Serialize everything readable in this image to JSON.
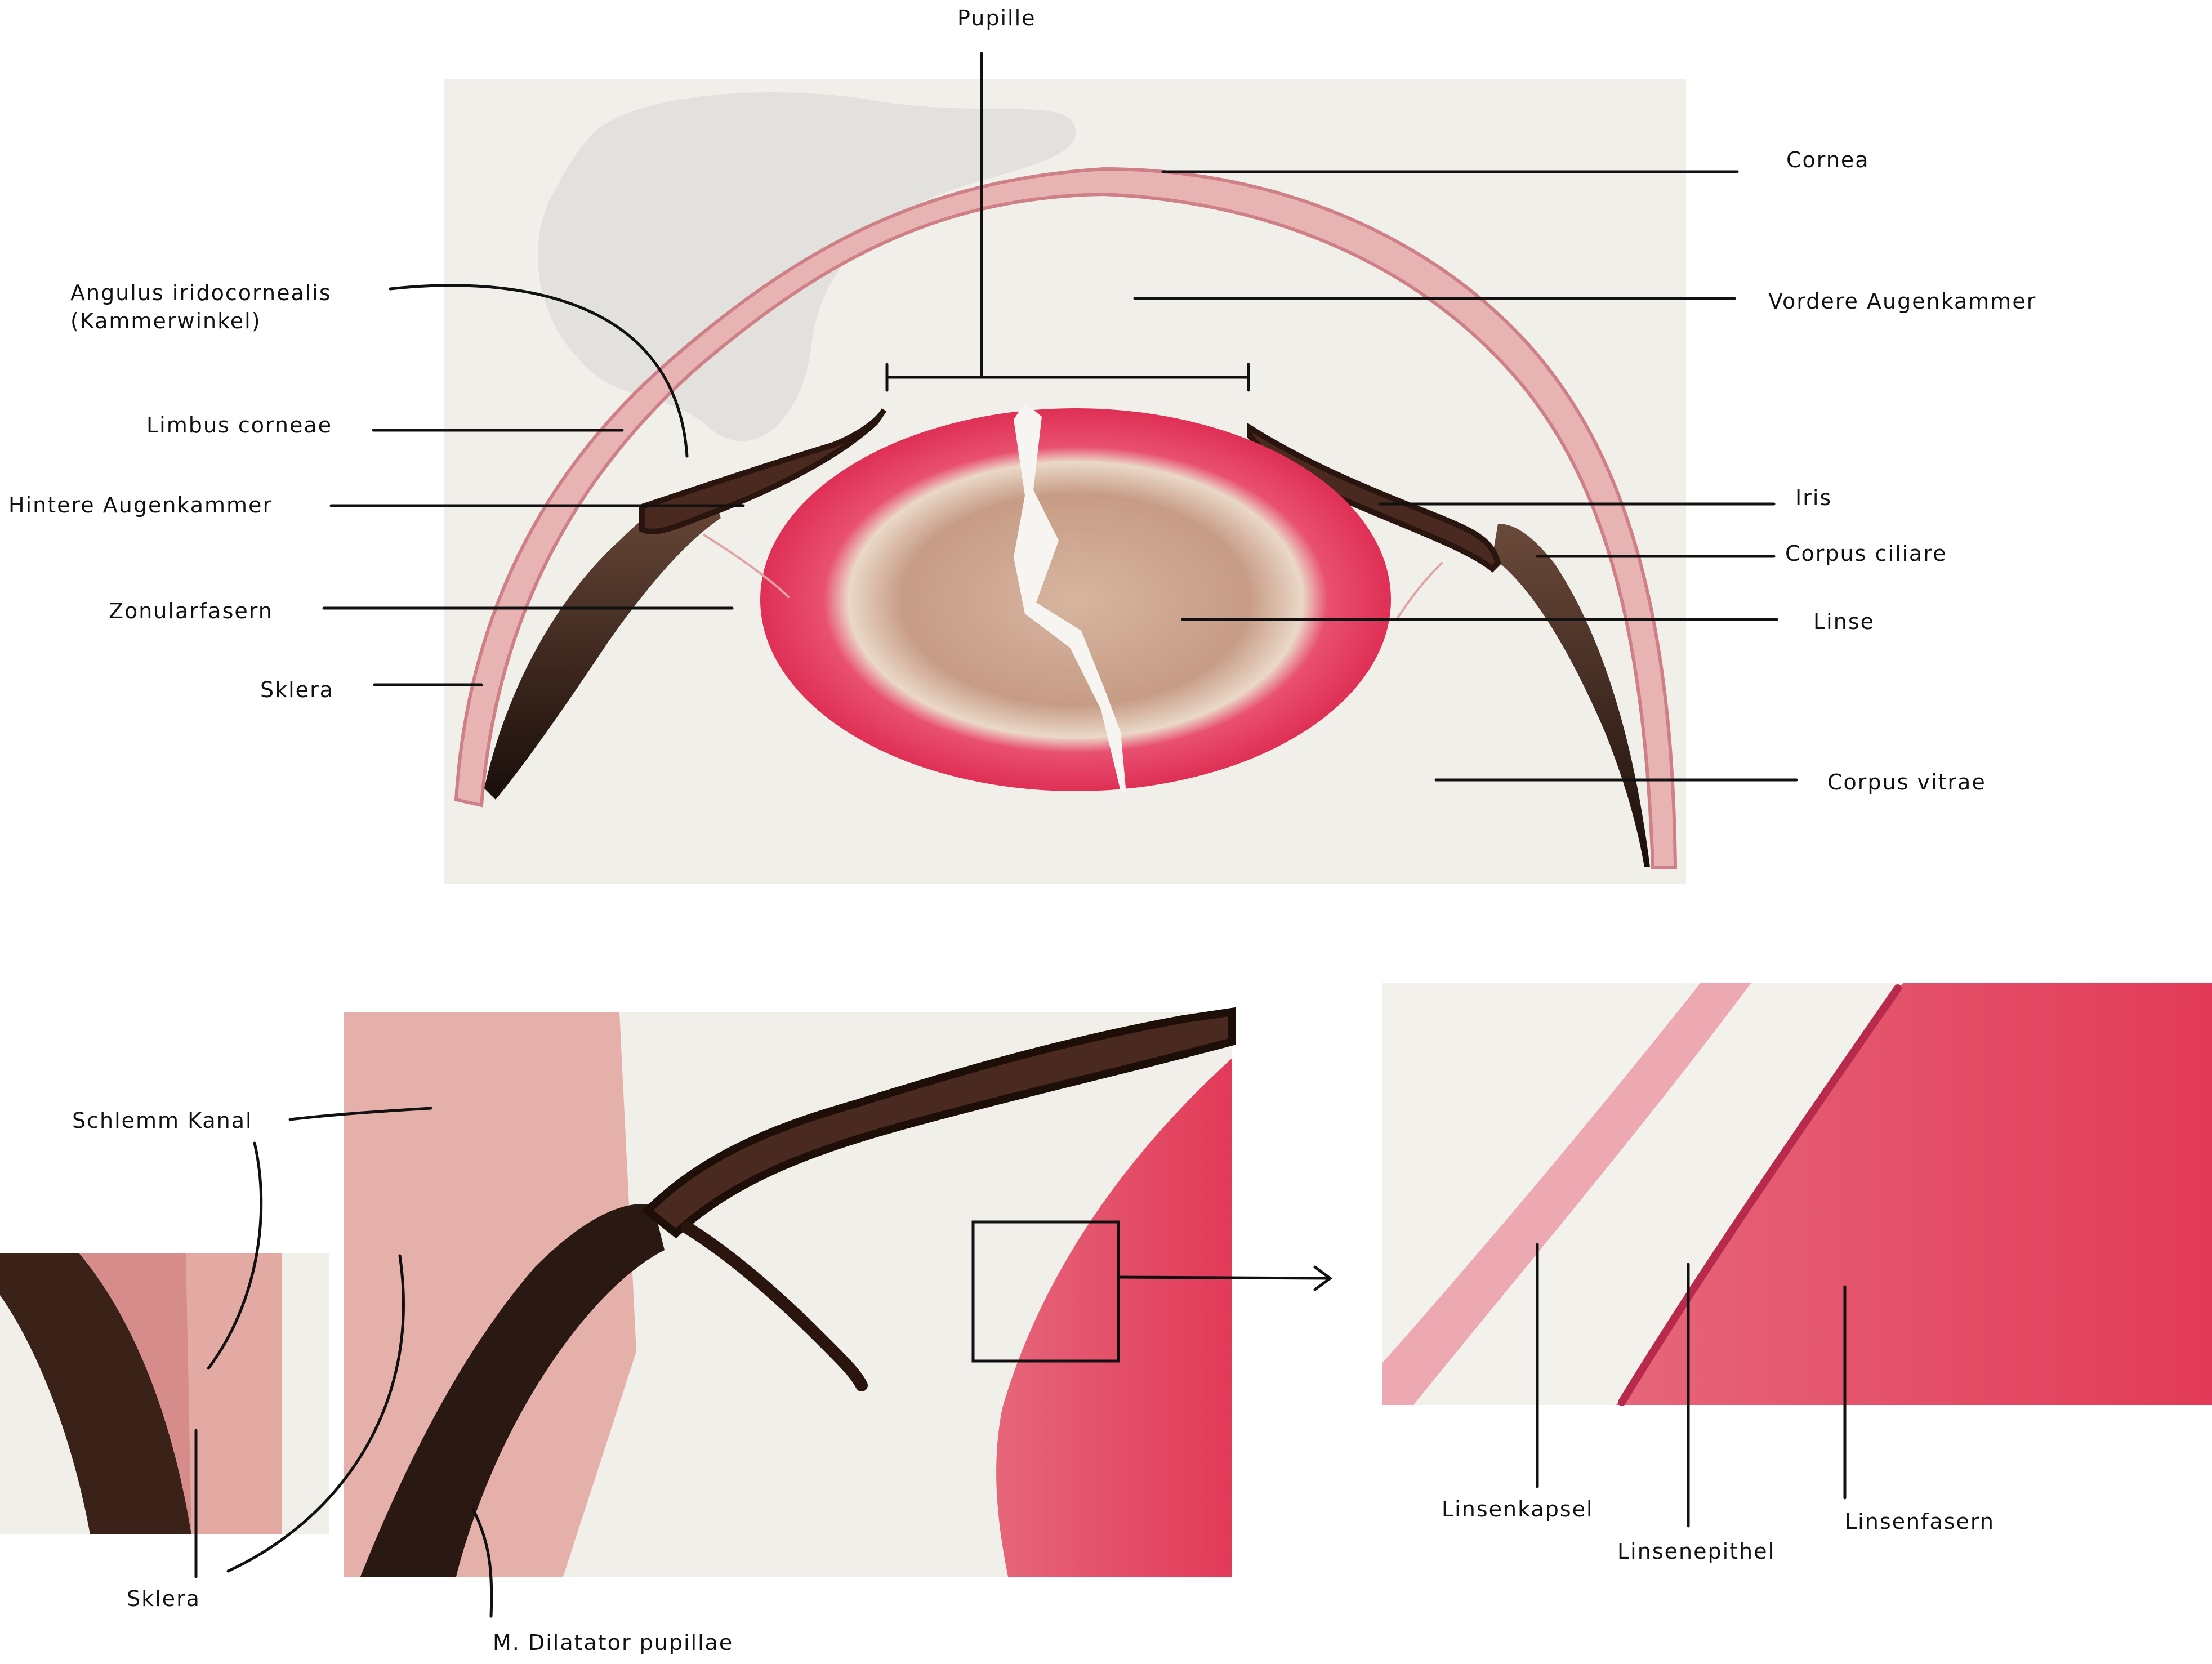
{
  "labels": {
    "pupille": "Pupille",
    "cornea": "Cornea",
    "angulus_line1": "Angulus iridocornealis",
    "angulus_line2": "(Kammerwinkel)",
    "vordere_augenkammer": "Vordere Augenkammer",
    "limbus_corneae": "Limbus corneae",
    "hintere_augenkammer": "Hintere Augenkammer",
    "iris": "Iris",
    "corpus_ciliare": "Corpus ciliare",
    "zonularfasern": "Zonularfasern",
    "linse": "Linse",
    "sklera_main": "Sklera",
    "corpus_vitrae": "Corpus vitrae",
    "schlemm_kanal": "Schlemm Kanal",
    "sklera_detail": "Sklera",
    "m_dilatator": "M. Dilatator pupillae",
    "linsenkapsel": "Linsenkapsel",
    "linsenepithel": "Linsenepithel",
    "linsenfasern": "Linsenfasern"
  },
  "colors": {
    "background": "#ffffff",
    "slide": "#f1efe9",
    "lens_red": "#e63a5c",
    "lens_core": "#c9a28c",
    "tissue_pink": "#e8a7a7",
    "pigment": "#2a1a14",
    "line": "#111111"
  }
}
